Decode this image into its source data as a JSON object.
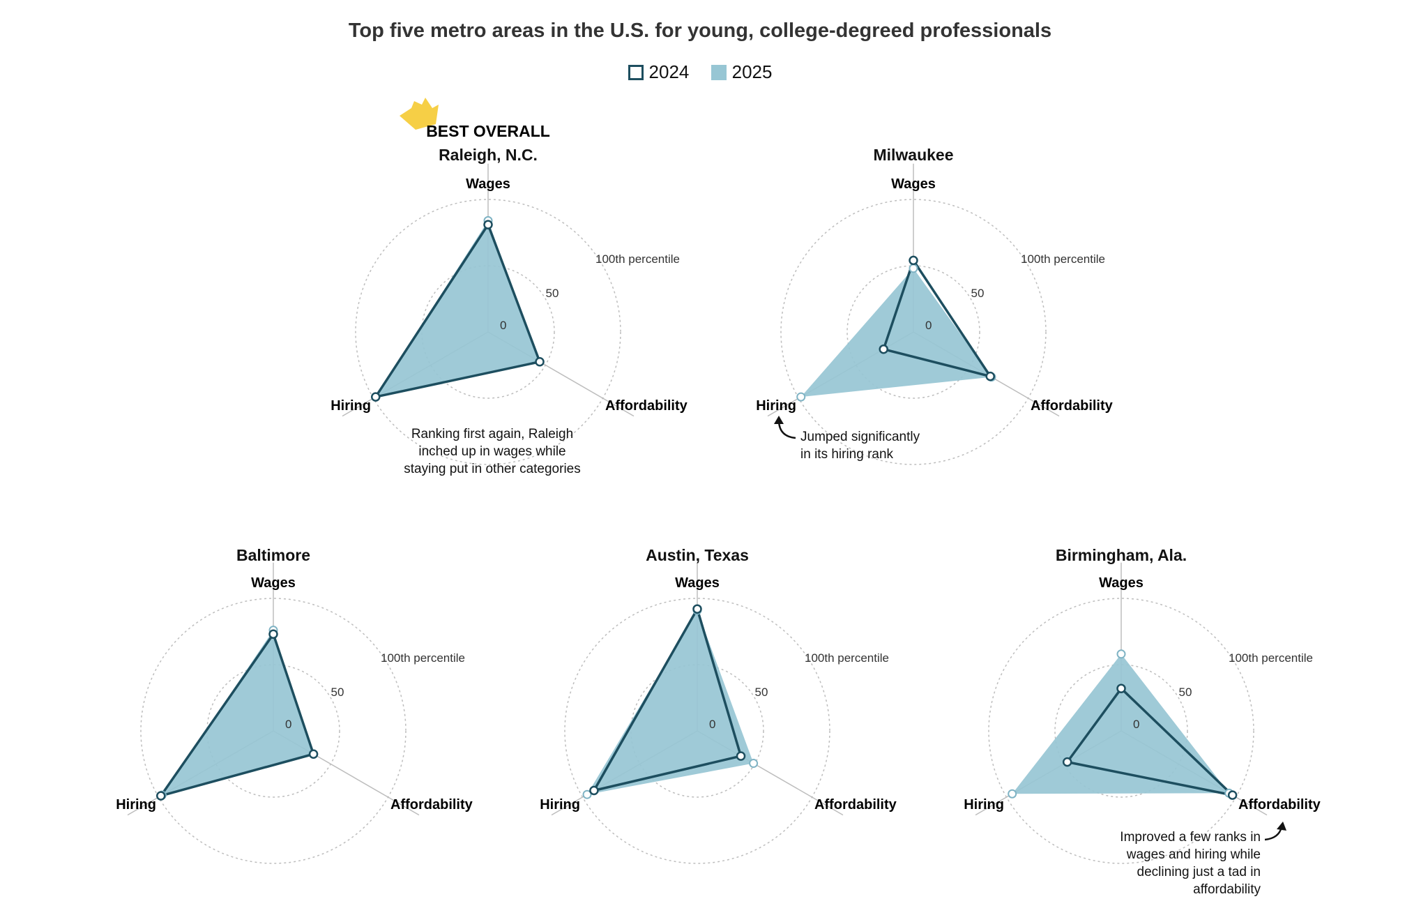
{
  "title": "Top five metro areas in the U.S. for young, college-degreed professionals",
  "legend": {
    "y2024": "2024",
    "y2025": "2025"
  },
  "colors": {
    "line2024": "#1d4e5f",
    "fill2025": "#97c6d4",
    "grid": "#bdbdbd",
    "crown": "#f6cf46"
  },
  "scale_labels": {
    "zero": "0",
    "fifty": "50",
    "hundred": "100th percentile"
  },
  "chart_data": [
    {
      "type": "radar",
      "title": "Raleigh, N.C.",
      "badge": "BEST OVERALL",
      "axes": [
        "Wages",
        "Affordability",
        "Hiring"
      ],
      "rlim": [
        0,
        100
      ],
      "series": [
        {
          "name": "2024",
          "values": [
            81,
            45,
            98
          ]
        },
        {
          "name": "2025",
          "values": [
            84,
            45,
            98
          ]
        }
      ],
      "annotation": [
        "Ranking first again, Raleigh",
        "inched up in wages while",
        "staying put in other categories"
      ]
    },
    {
      "type": "radar",
      "title": "Milwaukee",
      "axes": [
        "Wages",
        "Affordability",
        "Hiring"
      ],
      "rlim": [
        0,
        100
      ],
      "series": [
        {
          "name": "2024",
          "values": [
            54,
            67,
            26
          ]
        },
        {
          "name": "2025",
          "values": [
            48,
            68,
            98
          ]
        }
      ],
      "annotation": [
        "Jumped significantly",
        "in its hiring rank"
      ]
    },
    {
      "type": "radar",
      "title": "Baltimore",
      "axes": [
        "Wages",
        "Affordability",
        "Hiring"
      ],
      "rlim": [
        0,
        100
      ],
      "series": [
        {
          "name": "2024",
          "values": [
            73,
            35,
            98
          ]
        },
        {
          "name": "2025",
          "values": [
            76,
            35,
            97
          ]
        }
      ],
      "annotation": []
    },
    {
      "type": "radar",
      "title": "Austin, Texas",
      "axes": [
        "Wages",
        "Affordability",
        "Hiring"
      ],
      "rlim": [
        0,
        100
      ],
      "series": [
        {
          "name": "2024",
          "values": [
            92,
            38,
            90
          ]
        },
        {
          "name": "2025",
          "values": [
            91,
            49,
            96
          ]
        }
      ],
      "annotation": []
    },
    {
      "type": "radar",
      "title": "Birmingham, Ala.",
      "axes": [
        "Wages",
        "Affordability",
        "Hiring"
      ],
      "rlim": [
        0,
        100
      ],
      "series": [
        {
          "name": "2024",
          "values": [
            32,
            97,
            47
          ]
        },
        {
          "name": "2025",
          "values": [
            58,
            94,
            95
          ]
        }
      ],
      "annotation": [
        "Improved a few ranks in",
        "wages and hiring while",
        "declining just a tad in",
        "affordability"
      ]
    }
  ]
}
